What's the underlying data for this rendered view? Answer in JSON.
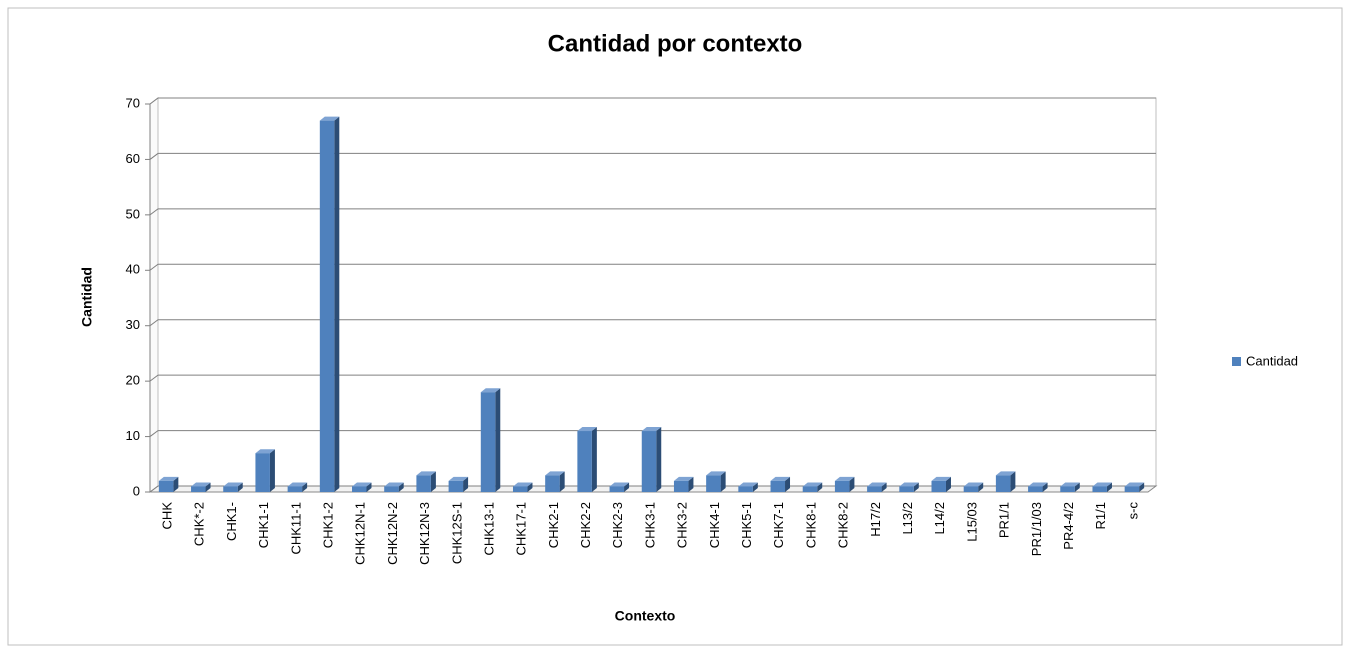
{
  "chart_data": {
    "type": "bar",
    "title": "Cantidad por contexto",
    "x_label": "Contexto",
    "y_label": "Cantidad",
    "categories": [
      "CHK",
      "CHK*-2",
      "CHK1-",
      "CHK1-1",
      "CHK11-1",
      "CHK1-2",
      "CHK12N-1",
      "CHK12N-2",
      "CHK12N-3",
      "CHK12S-1",
      "CHK13-1",
      "CHK17-1",
      "CHK2-1",
      "CHK2-2",
      "CHK2-3",
      "CHK3-1",
      "CHK3-2",
      "CHK4-1",
      "CHK5-1",
      "CHK7-1",
      "CHK8-1",
      "CHK8-2",
      "H17/2",
      "L13/2",
      "L14/2",
      "L15/03",
      "PR1/1",
      "PR1/1/03",
      "PR4-4/2",
      "R1/1",
      "s-c"
    ],
    "series": [
      {
        "name": "Cantidad",
        "color": "#4f81bd",
        "values": [
          2,
          1,
          1,
          7,
          1,
          67,
          1,
          1,
          3,
          2,
          18,
          1,
          3,
          11,
          1,
          11,
          2,
          3,
          1,
          2,
          1,
          2,
          1,
          1,
          2,
          1,
          3,
          1,
          1,
          1,
          1
        ]
      }
    ],
    "ylim": [
      0,
      70
    ],
    "yticks": [
      0,
      10,
      20,
      30,
      40,
      50,
      60,
      70
    ],
    "grid": true,
    "legend": "right"
  }
}
